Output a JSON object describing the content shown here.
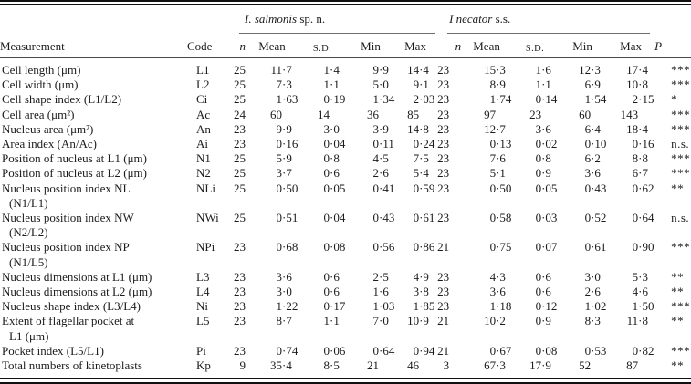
{
  "colors": {
    "background": "#ffffff",
    "text": "#1b1b1b",
    "rule_dark": "#111111",
    "rule_gray": "#6f6f6f"
  },
  "table": {
    "groups": [
      {
        "name_italic": "I. salmonis",
        "name_roman": " sp. n."
      },
      {
        "name_italic": "I necator",
        "name_roman": " s.s."
      }
    ],
    "headers": {
      "measurement": "Measurement",
      "code": "Code",
      "n": "n",
      "mean": "Mean",
      "sd": "S.D.",
      "min": "Min",
      "max": "Max",
      "p": "P"
    },
    "rows": [
      {
        "m1": "Cell length (μm)",
        "m2": "",
        "code": "L1",
        "sn": "25",
        "smean": "11·7",
        "ssd": "1·4",
        "smin": "9·9",
        "smax": "14·4",
        "nn": "23",
        "nmean": "15·3",
        "nsd": "1·6",
        "nmin": "12·3",
        "nmax": "17·4",
        "p": "***"
      },
      {
        "m1": "Cell width (μm)",
        "m2": "",
        "code": "L2",
        "sn": "25",
        "smean": "7·3",
        "ssd": "1·1",
        "smin": "5·0",
        "smax": "9·1",
        "nn": "23",
        "nmean": "8·9",
        "nsd": "1·1",
        "nmin": "6·9",
        "nmax": "10·8",
        "p": "***"
      },
      {
        "m1": "Cell shape index (L1/L2)",
        "m2": "",
        "code": "Ci",
        "sn": "25",
        "smean": "1·63",
        "ssd": "0·19",
        "smin": "1·34",
        "smax": "2·03",
        "nn": "23",
        "nmean": "1·74",
        "nsd": "0·14",
        "nmin": "1·54",
        "nmax": "2·15",
        "p": "*"
      },
      {
        "m1": "Cell area (μm²)",
        "m2": "",
        "code": "Ac",
        "sn": "24",
        "smean": "60",
        "ssd": "14",
        "smin": "36",
        "smax": "85",
        "nn": "23",
        "nmean": "97",
        "nsd": "23",
        "nmin": "60",
        "nmax": "143",
        "p": "***"
      },
      {
        "m1": "Nucleus area (μm²)",
        "m2": "",
        "code": "An",
        "sn": "23",
        "smean": "9·9",
        "ssd": "3·0",
        "smin": "3·9",
        "smax": "14·8",
        "nn": "23",
        "nmean": "12·7",
        "nsd": "3·6",
        "nmin": "6·4",
        "nmax": "18·4",
        "p": "***"
      },
      {
        "m1": "Area index (An/Ac)",
        "m2": "",
        "code": "Ai",
        "sn": "23",
        "smean": "0·16",
        "ssd": "0·04",
        "smin": "0·11",
        "smax": "0·24",
        "nn": "23",
        "nmean": "0·13",
        "nsd": "0·02",
        "nmin": "0·10",
        "nmax": "0·16",
        "p": "n.s."
      },
      {
        "m1": "Position of nucleus at L1 (μm)",
        "m2": "",
        "code": "N1",
        "sn": "25",
        "smean": "5·9",
        "ssd": "0·8",
        "smin": "4·5",
        "smax": "7·5",
        "nn": "23",
        "nmean": "7·6",
        "nsd": "0·8",
        "nmin": "6·2",
        "nmax": "8·8",
        "p": "***"
      },
      {
        "m1": "Position of nucleus at L2 (μm)",
        "m2": "",
        "code": "N2",
        "sn": "25",
        "smean": "3·7",
        "ssd": "0·6",
        "smin": "2·6",
        "smax": "5·4",
        "nn": "23",
        "nmean": "5·1",
        "nsd": "0·9",
        "nmin": "3·6",
        "nmax": "6·7",
        "p": "***"
      },
      {
        "m1": "Nucleus position index NL",
        "m2": "(N1/L1)",
        "code": "NLi",
        "sn": "25",
        "smean": "0·50",
        "ssd": "0·05",
        "smin": "0·41",
        "smax": "0·59",
        "nn": "23",
        "nmean": "0·50",
        "nsd": "0·05",
        "nmin": "0·43",
        "nmax": "0·62",
        "p": "**"
      },
      {
        "m1": "Nucleus position index NW",
        "m2": "(N2/L2)",
        "code": "NWi",
        "sn": "25",
        "smean": "0·51",
        "ssd": "0·04",
        "smin": "0·43",
        "smax": "0·61",
        "nn": "23",
        "nmean": "0·58",
        "nsd": "0·03",
        "nmin": "0·52",
        "nmax": "0·64",
        "p": "n.s."
      },
      {
        "m1": "Nucleus position index NP",
        "m2": "(N1/L5)",
        "code": "NPi",
        "sn": "23",
        "smean": "0·68",
        "ssd": "0·08",
        "smin": "0·56",
        "smax": "0·86",
        "nn": "21",
        "nmean": "0·75",
        "nsd": "0·07",
        "nmin": "0·61",
        "nmax": "0·90",
        "p": "***"
      },
      {
        "m1": "Nucleus dimensions at L1 (μm)",
        "m2": "",
        "code": "L3",
        "sn": "23",
        "smean": "3·6",
        "ssd": "0·6",
        "smin": "2·5",
        "smax": "4·9",
        "nn": "23",
        "nmean": "4·3",
        "nsd": "0·6",
        "nmin": "3·0",
        "nmax": "5·3",
        "p": "**"
      },
      {
        "m1": "Nucleus dimensions at L2 (μm)",
        "m2": "",
        "code": "L4",
        "sn": "23",
        "smean": "3·0",
        "ssd": "0·6",
        "smin": "1·6",
        "smax": "3·8",
        "nn": "23",
        "nmean": "3·6",
        "nsd": "0·6",
        "nmin": "2·6",
        "nmax": "4·6",
        "p": "**"
      },
      {
        "m1": "Nucleus shape index (L3/L4)",
        "m2": "",
        "code": "Ni",
        "sn": "23",
        "smean": "1·22",
        "ssd": "0·17",
        "smin": "1·03",
        "smax": "1·85",
        "nn": "23",
        "nmean": "1·18",
        "nsd": "0·12",
        "nmin": "1·02",
        "nmax": "1·50",
        "p": "***"
      },
      {
        "m1": "Extent of flagellar pocket at",
        "m2": "L1 (μm)",
        "code": "L5",
        "sn": "23",
        "smean": "8·7",
        "ssd": "1·1",
        "smin": "7·0",
        "smax": "10·9",
        "nn": "21",
        "nmean": "10·2",
        "nsd": "0·9",
        "nmin": "8·3",
        "nmax": "11·8",
        "p": "**"
      },
      {
        "m1": "Pocket index (L5/L1)",
        "m2": "",
        "code": "Pi",
        "sn": "23",
        "smean": "0·74",
        "ssd": "0·06",
        "smin": "0·64",
        "smax": "0·94",
        "nn": "21",
        "nmean": "0·67",
        "nsd": "0·08",
        "nmin": "0·53",
        "nmax": "0·82",
        "p": "***"
      },
      {
        "m1": "Total numbers of kinetoplasts",
        "m2": "",
        "code": "Kp",
        "sn": "9",
        "smean": "35·4",
        "ssd": "8·5",
        "smin": "21",
        "smax": "46",
        "nn": "3",
        "nmean": "67·3",
        "nsd": "17·9",
        "nmin": "52",
        "nmax": "87",
        "p": "**"
      }
    ]
  }
}
